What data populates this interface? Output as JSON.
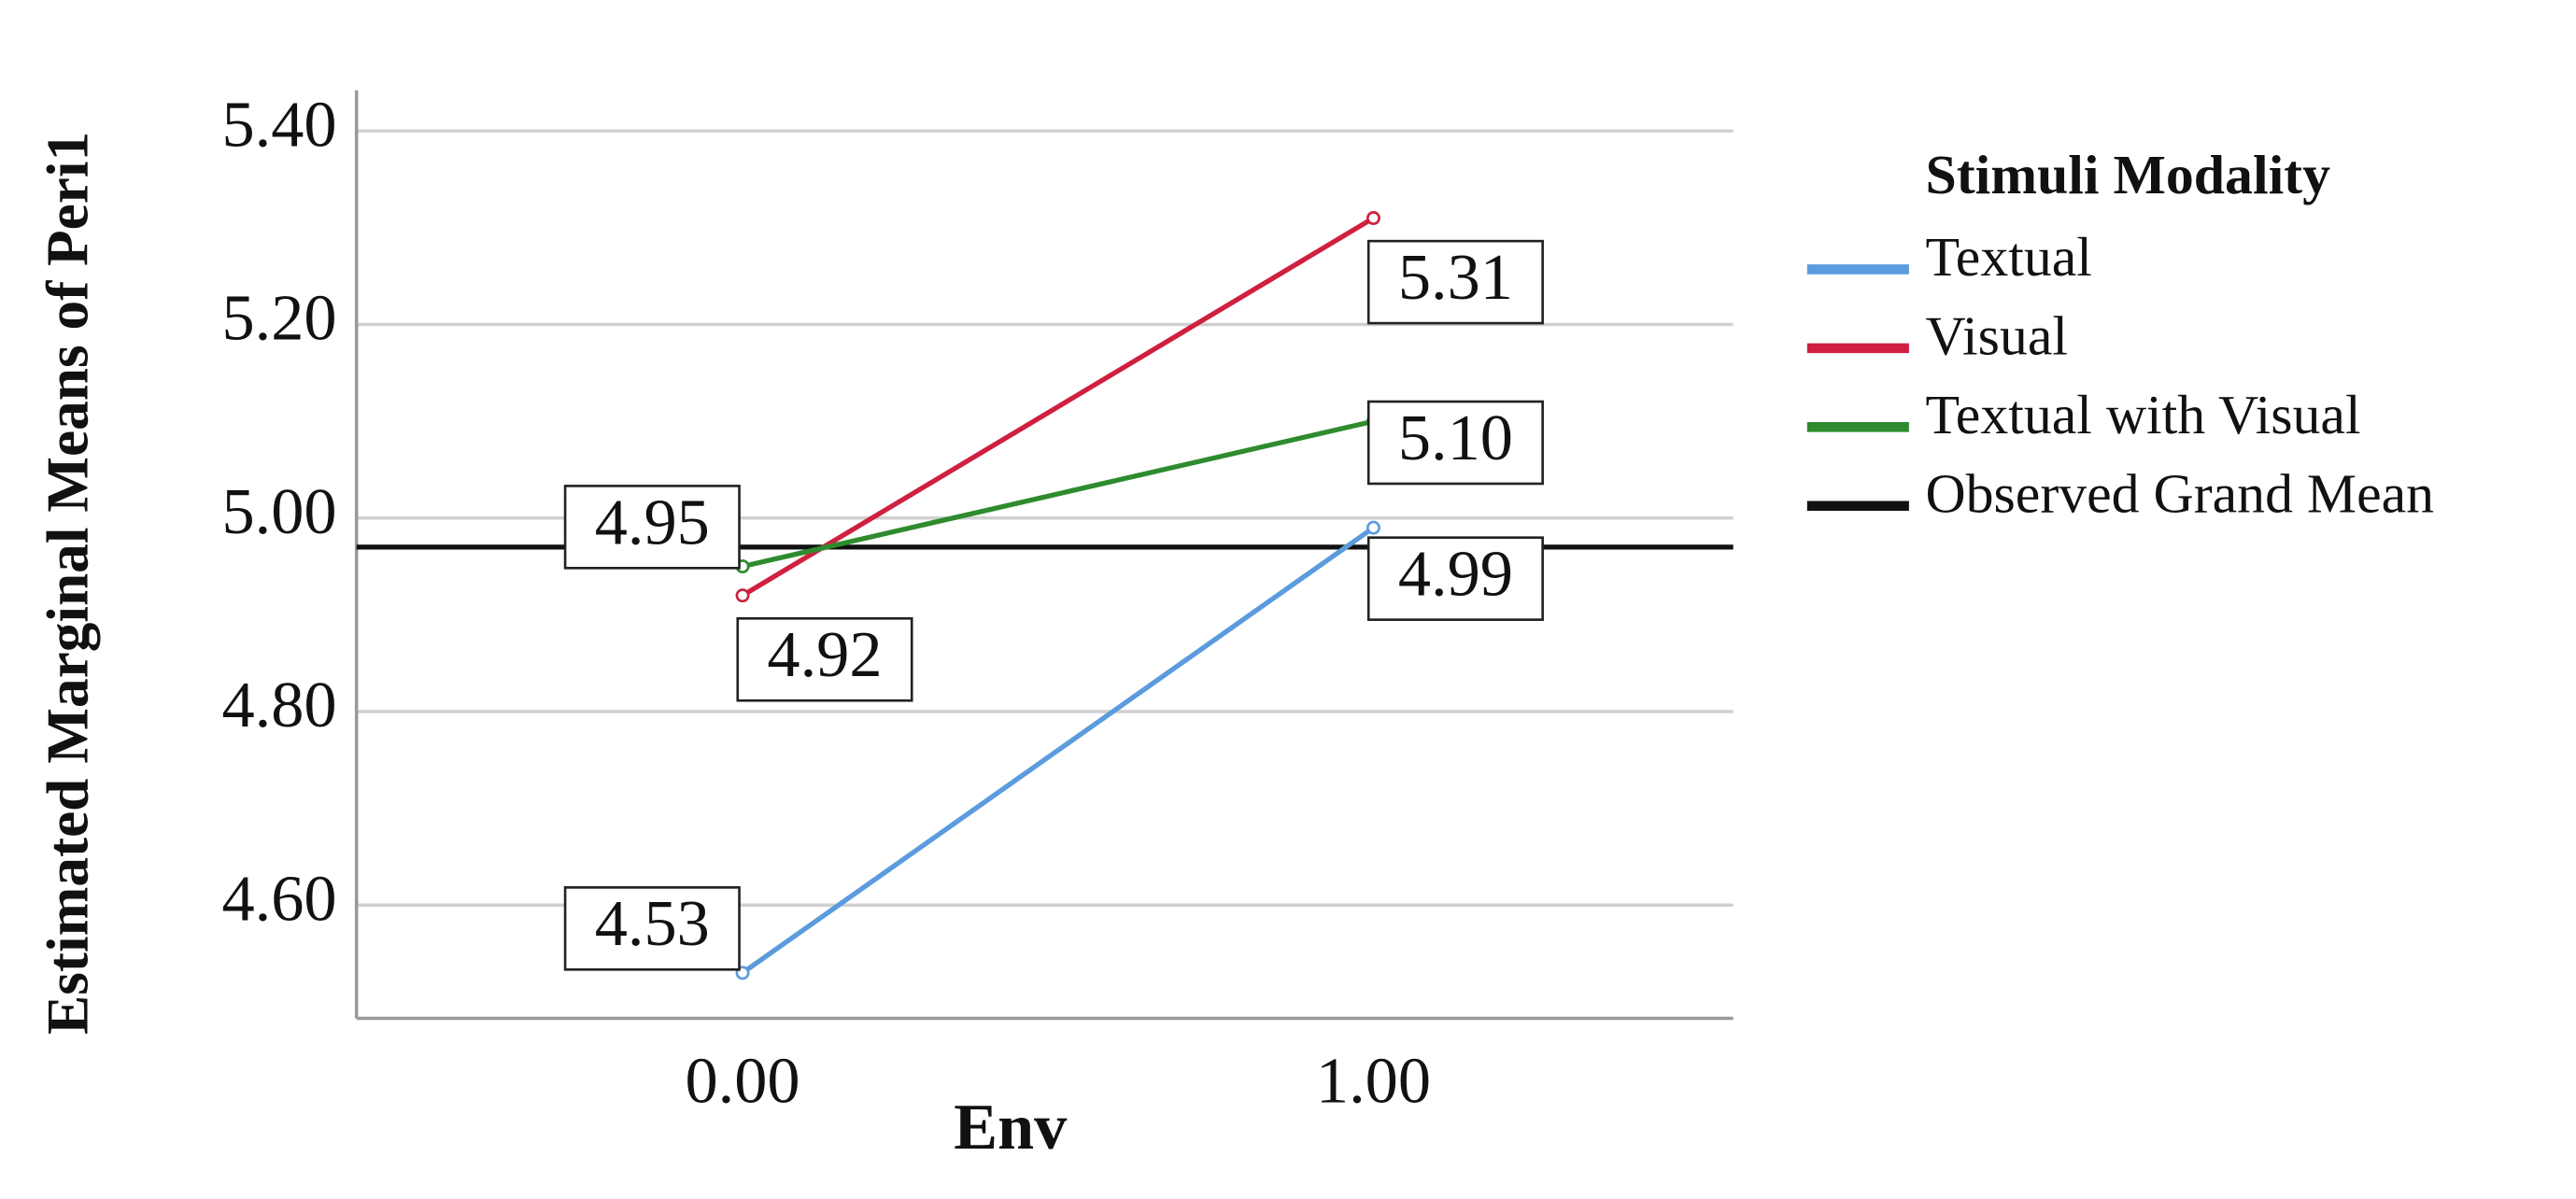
{
  "chart_data": {
    "type": "line",
    "x_label": "Env",
    "y_label": "Estimated Marginal Means of Peri1",
    "legend_title": "Stimuli Modality",
    "categories": [
      "0.00",
      "1.00"
    ],
    "series": [
      {
        "name": "Textual",
        "color": "#5b9bde",
        "values": [
          4.53,
          4.99
        ],
        "value_labels": [
          "4.53",
          "4.99"
        ]
      },
      {
        "name": "Visual",
        "color": "#d0203f",
        "values": [
          4.92,
          5.31
        ],
        "value_labels": [
          "4.92",
          "5.31"
        ]
      },
      {
        "name": "Textual with Visual",
        "color": "#2e8b2e",
        "values": [
          4.95,
          5.1
        ],
        "value_labels": [
          "4.95",
          "5.10"
        ]
      }
    ],
    "reference_line": {
      "name": "Observed Grand Mean",
      "color": "#111111",
      "value": 4.97
    },
    "ylim": [
      4.483,
      5.442
    ],
    "yticks": [
      {
        "value": 4.6,
        "label": "4.60"
      },
      {
        "value": 4.8,
        "label": "4.80"
      },
      {
        "value": 5.0,
        "label": "5.00"
      },
      {
        "value": 5.2,
        "label": "5.20"
      },
      {
        "value": 5.4,
        "label": "5.40"
      }
    ],
    "grid": true,
    "legend_position": "right"
  }
}
